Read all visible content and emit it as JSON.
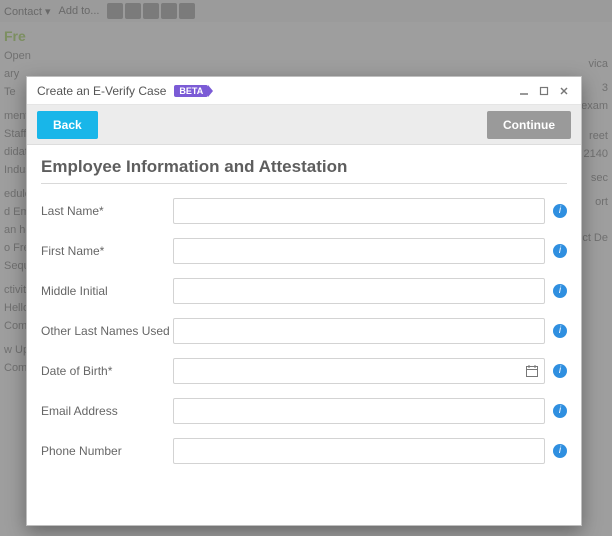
{
  "bg": {
    "contact_menu": "Contact",
    "add_to": "Add to...",
    "accent": "Fre",
    "open_label": "Open",
    "left_lines": [
      "ary",
      "Te",
      "",
      "ment o",
      "Staffin",
      "didate",
      "Industr",
      "",
      "edule",
      "d Emai",
      "an he",
      "o Fred,",
      "Sequo",
      "",
      "ctivity",
      "Hello t",
      "Compl",
      "",
      "w Up",
      "Compl"
    ],
    "right_lines": [
      "",
      "",
      "",
      "",
      "vica",
      "",
      "3",
      "Dexam",
      "",
      "",
      "reet",
      "O 2140",
      "",
      "sec",
      "",
      "ort",
      "",
      "",
      "",
      "ct De"
    ]
  },
  "modal": {
    "title": "Create an E-Verify Case",
    "beta": "BETA",
    "back": "Back",
    "continue": "Continue"
  },
  "form": {
    "section_title": "Employee Information and Attestation",
    "fields": {
      "last_name": {
        "label": "Last Name*",
        "value": ""
      },
      "first_name": {
        "label": "First Name*",
        "value": ""
      },
      "middle_initial": {
        "label": "Middle Initial",
        "value": ""
      },
      "other_last_names": {
        "label": "Other Last Names Used",
        "value": ""
      },
      "dob": {
        "label": "Date of Birth*",
        "value": ""
      },
      "email": {
        "label": "Email Address",
        "value": ""
      },
      "phone": {
        "label": "Phone Number",
        "value": ""
      }
    }
  }
}
